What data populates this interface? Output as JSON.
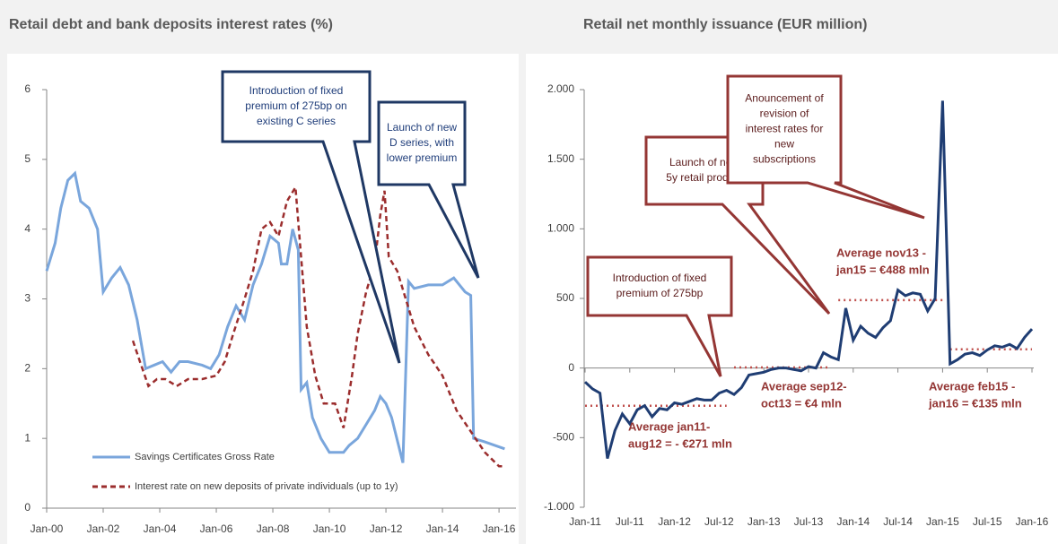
{
  "chart_data": [
    {
      "type": "line",
      "title": "Retail debt and bank deposits interest rates (%)",
      "xlim": [
        2000,
        2016.6
      ],
      "xticks": [
        {
          "value": 2000,
          "label": "Jan-00"
        },
        {
          "value": 2002,
          "label": "Jan-02"
        },
        {
          "value": 2004,
          "label": "Jan-04"
        },
        {
          "value": 2006,
          "label": "Jan-06"
        },
        {
          "value": 2008,
          "label": "Jan-08"
        },
        {
          "value": 2010,
          "label": "Jan-10"
        },
        {
          "value": 2012,
          "label": "Jan-12"
        },
        {
          "value": 2014,
          "label": "Jan-14"
        },
        {
          "value": 2016,
          "label": "Jan-16"
        }
      ],
      "ylim": [
        0,
        6
      ],
      "yticks": [
        0,
        1,
        2,
        3,
        4,
        5,
        6
      ],
      "series": [
        {
          "name": "Savings Certificates Gross Rate",
          "color": "#7aa6dc",
          "x": [
            2000.0,
            2000.3,
            2000.5,
            2000.75,
            2001.0,
            2001.2,
            2001.5,
            2001.8,
            2002.0,
            2002.3,
            2002.6,
            2002.9,
            2003.2,
            2003.5,
            2003.8,
            2004.1,
            2004.4,
            2004.7,
            2005.0,
            2005.5,
            2005.8,
            2006.1,
            2006.4,
            2006.7,
            2007.0,
            2007.3,
            2007.6,
            2007.9,
            2008.2,
            2008.3,
            2008.5,
            2008.7,
            2008.9,
            2009.0,
            2009.2,
            2009.4,
            2009.7,
            2010.0,
            2010.5,
            2010.7,
            2011.0,
            2011.3,
            2011.6,
            2011.8,
            2012.0,
            2012.2,
            2012.6,
            2012.8,
            2013.0,
            2013.5,
            2014.0,
            2014.4,
            2014.8,
            2015.0,
            2015.1,
            2015.5,
            2016.2
          ],
          "values": [
            3.4,
            3.8,
            4.3,
            4.7,
            4.8,
            4.4,
            4.3,
            4.0,
            3.1,
            3.3,
            3.45,
            3.2,
            2.7,
            2.0,
            2.05,
            2.1,
            1.95,
            2.1,
            2.1,
            2.05,
            2.0,
            2.2,
            2.6,
            2.9,
            2.7,
            3.2,
            3.5,
            3.9,
            3.8,
            3.5,
            3.5,
            4.0,
            3.7,
            1.7,
            1.8,
            1.3,
            1.0,
            0.8,
            0.8,
            0.9,
            1.0,
            1.2,
            1.4,
            1.6,
            1.5,
            1.3,
            0.65,
            3.25,
            3.15,
            3.2,
            3.2,
            3.3,
            3.1,
            3.05,
            1.0,
            0.95,
            0.85
          ]
        },
        {
          "name": "Interest rate on new deposits of private individuals (up to 1y)",
          "color": "#9b2d2d",
          "dashed": true,
          "x": [
            2003.05,
            2003.3,
            2003.6,
            2003.9,
            2004.2,
            2004.6,
            2005.0,
            2005.5,
            2006.0,
            2006.3,
            2006.6,
            2007.0,
            2007.3,
            2007.6,
            2007.9,
            2008.2,
            2008.5,
            2008.8,
            2009.0,
            2009.2,
            2009.5,
            2009.8,
            2010.2,
            2010.5,
            2010.8,
            2011.0,
            2011.3,
            2011.6,
            2011.8,
            2011.95,
            2012.1,
            2012.4,
            2012.7,
            2013.0,
            2013.5,
            2014.0,
            2014.5,
            2015.0,
            2015.5,
            2016.0,
            2016.2
          ],
          "values": [
            2.4,
            2.1,
            1.75,
            1.85,
            1.85,
            1.75,
            1.85,
            1.85,
            1.9,
            2.1,
            2.5,
            3.0,
            3.4,
            4.0,
            4.1,
            3.9,
            4.4,
            4.6,
            3.6,
            2.6,
            1.9,
            1.5,
            1.5,
            1.15,
            1.9,
            2.5,
            3.1,
            3.5,
            4.2,
            4.55,
            3.6,
            3.4,
            3.0,
            2.6,
            2.2,
            1.9,
            1.4,
            1.1,
            0.8,
            0.6,
            0.6
          ]
        }
      ],
      "annotations": [
        {
          "text": [
            "Introduction of fixed",
            "premium of 275bp on",
            "existing C series"
          ]
        },
        {
          "text": [
            "Launch of new",
            "D series, with",
            "lower premium"
          ]
        }
      ]
    },
    {
      "type": "line",
      "title": "Retail net monthly issuance (EUR million)",
      "categories": [
        "Jan-11",
        null,
        null,
        null,
        null,
        null,
        "Jul-11",
        null,
        null,
        null,
        null,
        null,
        "Jan-12",
        null,
        null,
        null,
        null,
        null,
        "Jul-12",
        null,
        null,
        null,
        null,
        null,
        "Jan-13",
        null,
        null,
        null,
        null,
        null,
        "Jul-13",
        null,
        null,
        null,
        null,
        null,
        "Jan-14",
        null,
        null,
        null,
        null,
        null,
        "Jul-14",
        null,
        null,
        null,
        null,
        null,
        "Jan-15",
        null,
        null,
        null,
        null,
        null,
        "Jul-15",
        null,
        null,
        null,
        null,
        null,
        "Jan-16"
      ],
      "values": [
        -100,
        -150,
        -180,
        -650,
        -450,
        -330,
        -400,
        -300,
        -270,
        -350,
        -290,
        -300,
        -250,
        -260,
        -240,
        -220,
        -230,
        -230,
        -180,
        -160,
        -190,
        -140,
        -50,
        -40,
        -30,
        -10,
        0,
        0,
        -10,
        -20,
        10,
        0,
        110,
        80,
        60,
        430,
        200,
        300,
        250,
        220,
        290,
        340,
        560,
        520,
        540,
        530,
        410,
        500,
        1920,
        30,
        60,
        100,
        110,
        90,
        130,
        160,
        150,
        170,
        140,
        220,
        280
      ],
      "color": "#1f3d73",
      "ylim": [
        -1000,
        2000
      ],
      "yticks": [
        {
          "value": -1000,
          "label": "-1.000"
        },
        -500,
        0,
        500,
        {
          "value": 1000,
          "label": "1.000"
        },
        {
          "value": 1500,
          "label": "1.500"
        },
        {
          "value": 2000,
          "label": "2.000"
        }
      ],
      "reference_lines": [
        {
          "value": -271,
          "from": 0,
          "to": 19,
          "color": "#c0504d",
          "label": [
            "Average jan11-",
            "aug12 = - €271 mln"
          ]
        },
        {
          "value": 4,
          "from": 20,
          "to": 33,
          "color": "#c0504d",
          "label": [
            "Average sep12-",
            "oct13 = €4 mln"
          ]
        },
        {
          "value": 488,
          "from": 34,
          "to": 48,
          "color": "#c0504d",
          "label": [
            "Average nov13 -",
            "jan15 = €488 mln"
          ]
        },
        {
          "value": 135,
          "from": 49,
          "to": 60,
          "color": "#c0504d",
          "label": [
            "Average feb15 -",
            "jan16 = €135 mln"
          ]
        }
      ],
      "annotations": [
        {
          "text": [
            "Introduction of fixed",
            "premium of 275bp"
          ]
        },
        {
          "text": [
            "Launch of new",
            "5y retail product"
          ]
        },
        {
          "text": [
            "Anouncement of",
            "revision of",
            "interest rates for",
            "new",
            "subscriptions"
          ]
        }
      ]
    }
  ]
}
